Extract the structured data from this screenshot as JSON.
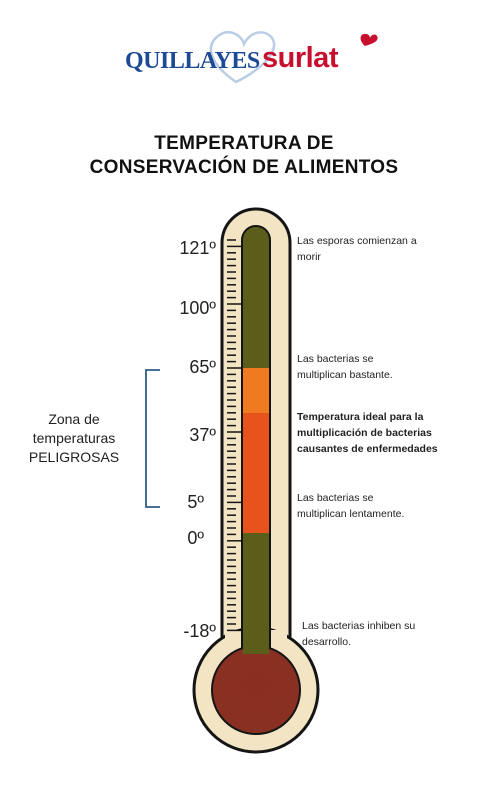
{
  "logo": {
    "brand1": "QUILLAYES",
    "brand2": "surlat"
  },
  "title": {
    "line1": "TEMPERATURA DE",
    "line2": "CONSERVACIÓN DE ALIMENTOS"
  },
  "ticks": [
    "121º",
    "100º",
    "65º",
    "37º",
    "5º",
    "0º",
    "-18º"
  ],
  "zone": {
    "line1": "Zona de",
    "line2": "temperaturas",
    "line3": "PELIGROSAS"
  },
  "descriptions": {
    "d121": [
      "Las esporas comienzan a",
      "morir"
    ],
    "d65": [
      "Las bacterias se",
      "multiplican bastante."
    ],
    "d37": [
      "Temperatura ideal para la",
      "multiplicación de bacterias",
      "causantes de enfermedades"
    ],
    "d5": [
      "Las bacterias se",
      "multiplican lentamente."
    ],
    "dm18": [
      "Las bacterias inhiben su",
      "desarrollo."
    ]
  },
  "colors": {
    "tube": "#5a5e1a",
    "orange": "#f07a20",
    "red": "#e8521c",
    "bulb": "#8b2e22",
    "glass": "#f3e4c4",
    "outline": "#151515",
    "bracket": "#2f5d86"
  }
}
